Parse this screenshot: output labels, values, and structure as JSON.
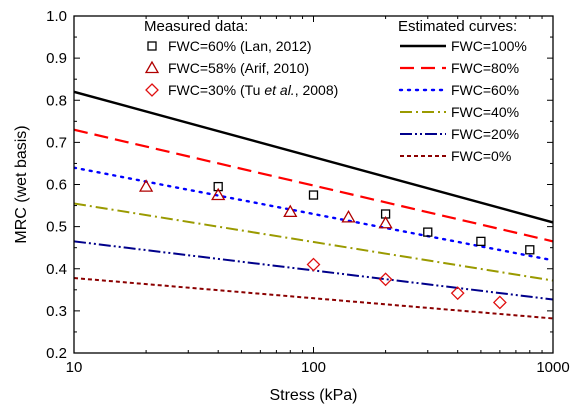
{
  "chart_data": {
    "type": "scatter",
    "xlabel": "Stress (kPa)",
    "ylabel": "MRC (wet basis)",
    "xscale": "log",
    "xlim": [
      10,
      1000
    ],
    "ylim": [
      0.2,
      1.0
    ],
    "x_ticks": [
      10,
      100,
      1000
    ],
    "x_tick_labels": [
      "10",
      "100",
      "1000"
    ],
    "y_ticks": [
      0.2,
      0.3,
      0.4,
      0.5,
      0.6,
      0.7,
      0.8,
      0.9,
      1.0
    ],
    "y_tick_labels": [
      "0.2",
      "0.3",
      "0.4",
      "0.5",
      "0.6",
      "0.7",
      "0.8",
      "0.9",
      "1.0"
    ],
    "grid": false,
    "measured_legend_title": "Measured data:",
    "estimated_legend_title": "Estimated curves:",
    "measured_series": [
      {
        "name": "FWC=60% (Lan, 2012)",
        "label_parts": [
          "FWC=60% (Lan, 2012)"
        ],
        "marker": "square",
        "color": "#000000",
        "x": [
          40,
          100,
          200,
          300,
          500,
          800
        ],
        "y": [
          0.595,
          0.575,
          0.53,
          0.487,
          0.465,
          0.445
        ]
      },
      {
        "name": "FWC=58% (Arif, 2010)",
        "label_parts": [
          "FWC=58% (Arif, 2010)"
        ],
        "marker": "triangle",
        "color": "#b00000",
        "x": [
          20,
          40,
          80,
          140,
          200
        ],
        "y": [
          0.595,
          0.575,
          0.535,
          0.522,
          0.508
        ]
      },
      {
        "name": "FWC=30% (Tu et al., 2008)",
        "label_parts": [
          "FWC=30% (Tu ",
          "et al.",
          ", 2008)"
        ],
        "marker": "diamond",
        "color": "#e01010",
        "x": [
          100,
          200,
          400,
          600
        ],
        "y": [
          0.41,
          0.375,
          0.342,
          0.32
        ]
      }
    ],
    "estimated_series": [
      {
        "name": "FWC=100%",
        "color": "#000000",
        "dash": "solid",
        "x": [
          10,
          1000
        ],
        "y": [
          0.82,
          0.51
        ]
      },
      {
        "name": "FWC=80%",
        "color": "#ff0000",
        "dash": "dash",
        "x": [
          10,
          1000
        ],
        "y": [
          0.73,
          0.465
        ]
      },
      {
        "name": "FWC=60%",
        "color": "#0000ff",
        "dash": "dot",
        "x": [
          10,
          1000
        ],
        "y": [
          0.64,
          0.42
        ]
      },
      {
        "name": "FWC=40%",
        "color": "#9a9a00",
        "dash": "dashdot",
        "x": [
          10,
          1000
        ],
        "y": [
          0.555,
          0.372
        ]
      },
      {
        "name": "FWC=20%",
        "color": "#00008b",
        "dash": "dashdotdot",
        "x": [
          10,
          1000
        ],
        "y": [
          0.465,
          0.327
        ]
      },
      {
        "name": "FWC=0%",
        "color": "#8b0000",
        "dash": "shortdash",
        "x": [
          10,
          1000
        ],
        "y": [
          0.378,
          0.282
        ]
      }
    ]
  }
}
